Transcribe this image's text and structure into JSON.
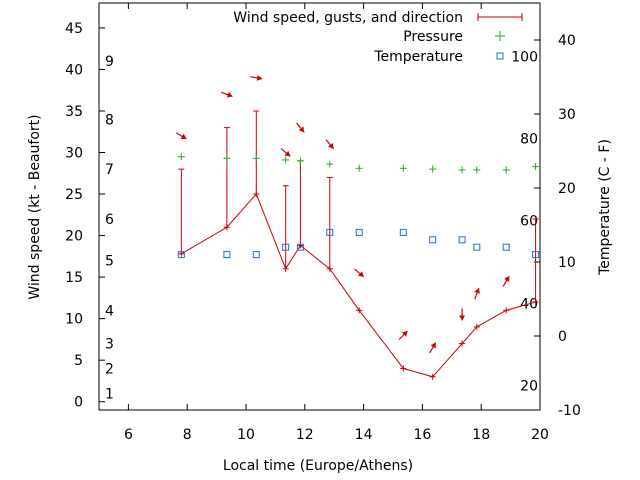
{
  "chart_data": {
    "type": "line",
    "xlabel": "Local time (Europe/Athens)",
    "ylabel": "Wind speed (kt - Beaufort)",
    "y2label": "Temperature (C - F)",
    "xlim": [
      5,
      20
    ],
    "ylim": [
      -1,
      48
    ],
    "y2lim": [
      -10,
      45
    ],
    "x_ticks": [
      6,
      8,
      10,
      12,
      14,
      16,
      18,
      20
    ],
    "y_ticks": [
      0,
      5,
      10,
      15,
      20,
      25,
      30,
      35,
      40,
      45
    ],
    "y2_ticks": [
      -10,
      0,
      10,
      20,
      30,
      40
    ],
    "beaufort_labels": [
      {
        "label": "1",
        "y": 1
      },
      {
        "label": "2",
        "y": 4
      },
      {
        "label": "3",
        "y": 7
      },
      {
        "label": "4",
        "y": 11
      },
      {
        "label": "5",
        "y": 17
      },
      {
        "label": "6",
        "y": 22
      },
      {
        "label": "7",
        "y": 28
      },
      {
        "label": "8",
        "y": 34
      },
      {
        "label": "9",
        "y": 41
      }
    ],
    "fahrenheit_labels": [
      {
        "label": "20",
        "y": -6.7
      },
      {
        "label": "40",
        "y": 4.4
      },
      {
        "label": "60",
        "y": 15.6
      },
      {
        "label": "80",
        "y": 26.7
      },
      {
        "label": "100",
        "y": 37.8
      }
    ],
    "grid": false,
    "legend_position": "top-right",
    "legend": {
      "wind": "Wind speed, gusts, and direction",
      "pressure": "Pressure",
      "temperature": "Temperature"
    },
    "colors": {
      "wind": "#cc0000",
      "pressure": "#22aa22",
      "temperature": "#1f6fcf"
    },
    "wind": {
      "x": [
        7.8,
        9.35,
        10.35,
        11.35,
        11.85,
        12.85,
        13.85,
        15.35,
        16.35,
        17.35,
        17.85,
        18.85,
        19.85
      ],
      "speed": [
        17.8,
        21,
        25,
        16,
        18.8,
        16,
        11,
        4,
        3,
        7,
        9,
        11,
        12
      ],
      "gust": [
        28,
        33,
        35,
        26,
        29,
        27,
        null,
        null,
        null,
        null,
        null,
        null,
        22
      ],
      "direction_deg": [
        300,
        290,
        280,
        310,
        320,
        320,
        310,
        225,
        210,
        360,
        200,
        210,
        270
      ],
      "arrow_y": [
        32,
        37,
        39,
        30,
        33,
        31,
        15.5,
        8,
        6.5,
        10.5,
        13,
        14.5,
        null
      ]
    },
    "pressure": {
      "x": [
        7.8,
        9.35,
        10.35,
        11.35,
        11.85,
        12.85,
        13.85,
        15.35,
        16.35,
        17.35,
        17.85,
        18.85,
        19.85
      ],
      "y": [
        29.5,
        29.3,
        29.3,
        29.1,
        29,
        28.6,
        28.1,
        28.1,
        28,
        27.9,
        27.9,
        27.9,
        28.3
      ]
    },
    "temperature": {
      "x": [
        7.8,
        9.35,
        10.35,
        11.35,
        11.85,
        12.85,
        13.85,
        15.35,
        16.35,
        17.35,
        17.85,
        18.85,
        19.85
      ],
      "y": [
        11,
        11,
        11,
        12,
        12,
        14,
        14,
        14,
        13,
        13,
        12,
        12,
        11
      ]
    }
  }
}
